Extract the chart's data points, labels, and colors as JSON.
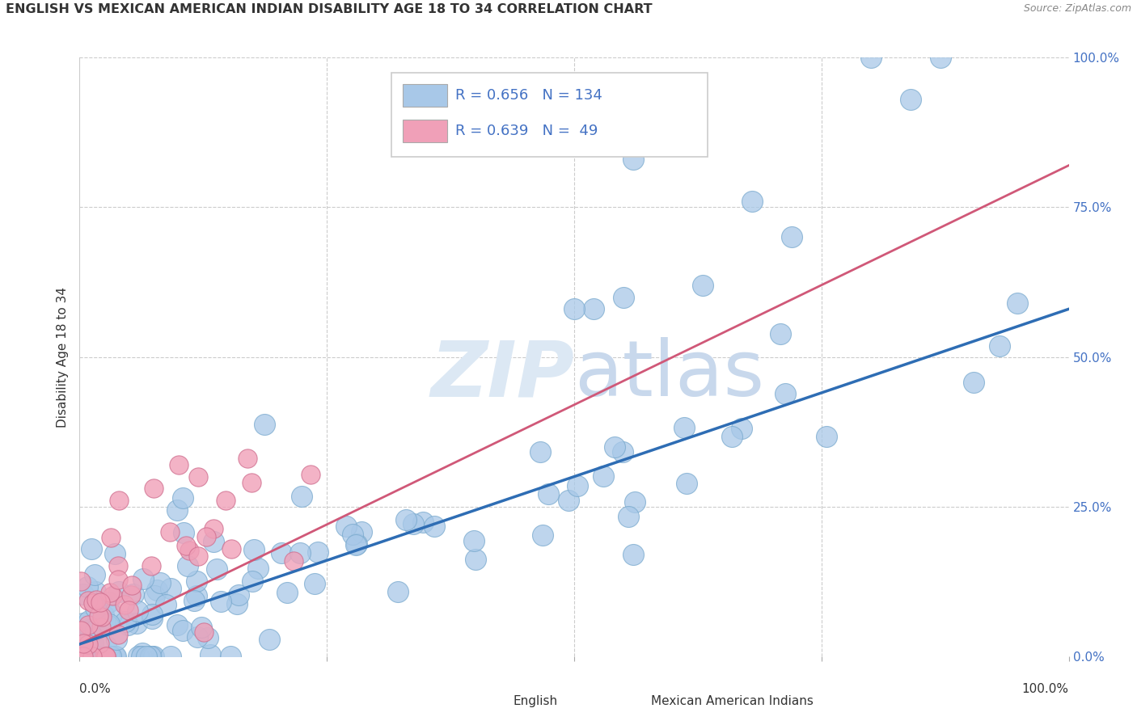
{
  "title": "ENGLISH VS MEXICAN AMERICAN INDIAN DISABILITY AGE 18 TO 34 CORRELATION CHART",
  "source": "Source: ZipAtlas.com",
  "ylabel": "Disability Age 18 to 34",
  "english_R": 0.656,
  "english_N": 134,
  "mexican_R": 0.639,
  "mexican_N": 49,
  "english_color": "#a8c8e8",
  "english_edge_color": "#7aaace",
  "english_line_color": "#2e6db4",
  "mexican_color": "#f0a0b8",
  "mexican_edge_color": "#d07090",
  "mexican_line_color": "#d05878",
  "watermark_color": "#d8e4f0",
  "right_tick_color": "#4472c4",
  "xlim": [
    0.0,
    1.0
  ],
  "ylim": [
    0.0,
    1.0
  ],
  "grid_color": "#cccccc",
  "background": "#ffffff"
}
